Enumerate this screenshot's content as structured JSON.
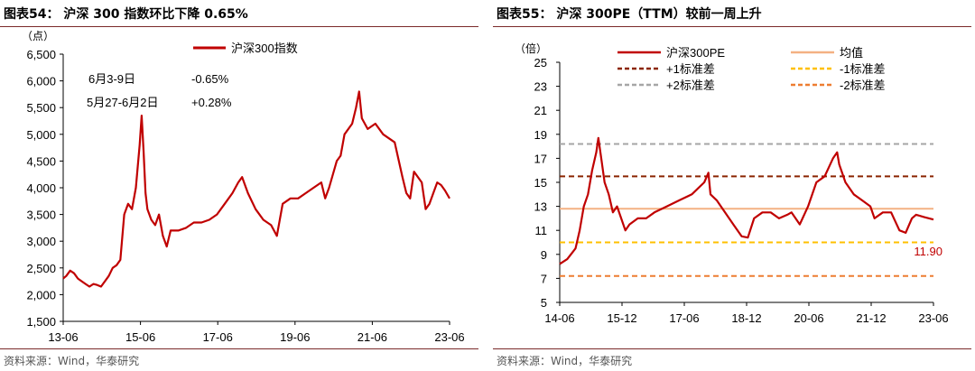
{
  "left": {
    "title": "图表54：  沪深 300 指数环比下降 0.65%",
    "source": "资料来源：Wind，华泰研究",
    "chart_data": {
      "type": "line",
      "ylabel": "（点）",
      "ylim": [
        1500,
        6500
      ],
      "y_ticks": [
        "1,500",
        "2,000",
        "2,500",
        "3,000",
        "3,500",
        "4,000",
        "4,500",
        "5,000",
        "5,500",
        "6,000",
        "6,500"
      ],
      "y_tick_values": [
        1500,
        2000,
        2500,
        3000,
        3500,
        4000,
        4500,
        5000,
        5500,
        6000,
        6500
      ],
      "x_ticks": [
        "13-06",
        "15-06",
        "17-06",
        "19-06",
        "21-06",
        "23-06"
      ],
      "x_range": [
        2013.42,
        2023.42
      ],
      "legend": "top-center",
      "series": [
        {
          "name": "沪深300指数",
          "color": "#c00000",
          "x": [
            2013.42,
            2013.5,
            2013.6,
            2013.7,
            2013.8,
            2013.9,
            2014.0,
            2014.1,
            2014.2,
            2014.3,
            2014.4,
            2014.5,
            2014.6,
            2014.7,
            2014.8,
            2014.9,
            2015.0,
            2015.1,
            2015.2,
            2015.3,
            2015.4,
            2015.45,
            2015.5,
            2015.55,
            2015.6,
            2015.7,
            2015.8,
            2015.9,
            2016.0,
            2016.1,
            2016.2,
            2016.4,
            2016.6,
            2016.8,
            2017.0,
            2017.2,
            2017.4,
            2017.6,
            2017.8,
            2017.95,
            2018.05,
            2018.2,
            2018.4,
            2018.6,
            2018.8,
            2018.95,
            2019.1,
            2019.3,
            2019.5,
            2019.7,
            2019.9,
            2020.1,
            2020.2,
            2020.3,
            2020.5,
            2020.6,
            2020.7,
            2020.9,
            2021.0,
            2021.08,
            2021.15,
            2021.3,
            2021.5,
            2021.7,
            2021.9,
            2022.0,
            2022.2,
            2022.3,
            2022.4,
            2022.5,
            2022.7,
            2022.8,
            2022.9,
            2023.0,
            2023.1,
            2023.2,
            2023.3,
            2023.42
          ],
          "y": [
            2300,
            2350,
            2450,
            2400,
            2300,
            2250,
            2200,
            2150,
            2200,
            2180,
            2150,
            2250,
            2350,
            2500,
            2550,
            2650,
            3500,
            3700,
            3600,
            4000,
            4800,
            5350,
            4700,
            3900,
            3600,
            3400,
            3300,
            3500,
            3100,
            2900,
            3200,
            3200,
            3250,
            3350,
            3350,
            3400,
            3500,
            3700,
            3900,
            4100,
            4200,
            3900,
            3600,
            3400,
            3300,
            3100,
            3700,
            3800,
            3800,
            3900,
            4000,
            4100,
            3800,
            4000,
            4500,
            4600,
            5000,
            5200,
            5500,
            5800,
            5300,
            5100,
            5200,
            5000,
            4900,
            4850,
            4200,
            3900,
            3800,
            4300,
            4100,
            3600,
            3700,
            3900,
            4100,
            4050,
            3950,
            3800
          ]
        }
      ],
      "annotations": [
        {
          "label": "6月3-9日",
          "value": "-0.65%"
        },
        {
          "label": "5月27-6月2日",
          "value": "+0.28%"
        }
      ]
    }
  },
  "right": {
    "title": "图表55：  沪深 300PE（TTM）较前一周上升",
    "source": "资料来源：Wind，华泰研究",
    "chart_data": {
      "type": "line",
      "ylabel": "（倍）",
      "ylim": [
        5,
        25
      ],
      "y_ticks": [
        "5",
        "7",
        "9",
        "11",
        "13",
        "15",
        "17",
        "19",
        "21",
        "23",
        "25"
      ],
      "y_tick_values": [
        5,
        7,
        9,
        11,
        13,
        15,
        17,
        19,
        21,
        23,
        25
      ],
      "x_ticks": [
        "14-06",
        "15-12",
        "17-06",
        "18-12",
        "20-06",
        "21-12",
        "23-06"
      ],
      "x_range": [
        2014.42,
        2023.42
      ],
      "legend": "top",
      "series": [
        {
          "name": "沪深300PE",
          "color": "#c00000",
          "style": "solid",
          "x": [
            2014.42,
            2014.6,
            2014.8,
            2014.9,
            2015.0,
            2015.1,
            2015.2,
            2015.3,
            2015.35,
            2015.42,
            2015.5,
            2015.6,
            2015.7,
            2015.8,
            2015.9,
            2016.0,
            2016.1,
            2016.3,
            2016.5,
            2016.7,
            2017.0,
            2017.3,
            2017.6,
            2017.9,
            2018.0,
            2018.05,
            2018.2,
            2018.4,
            2018.6,
            2018.8,
            2018.95,
            2019.1,
            2019.3,
            2019.5,
            2019.7,
            2019.9,
            2020.0,
            2020.2,
            2020.4,
            2020.6,
            2020.8,
            2021.0,
            2021.1,
            2021.15,
            2021.3,
            2021.5,
            2021.7,
            2021.9,
            2022.0,
            2022.2,
            2022.4,
            2022.6,
            2022.75,
            2022.9,
            2023.0,
            2023.2,
            2023.42
          ],
          "y": [
            8.2,
            8.6,
            9.5,
            11,
            13,
            14,
            16,
            17.5,
            18.7,
            17,
            15,
            14,
            12.5,
            13,
            12,
            11,
            11.5,
            12,
            12,
            12.5,
            13,
            13.5,
            14,
            15,
            15.8,
            14,
            13.5,
            12.5,
            11.5,
            10.5,
            10.4,
            12,
            12.5,
            12.5,
            12,
            12.3,
            12.5,
            11.5,
            13,
            15,
            15.5,
            17,
            17.5,
            16.5,
            15,
            14,
            13.5,
            13,
            12,
            12.5,
            12.5,
            11,
            10.8,
            12,
            12.3,
            12.1,
            11.9
          ]
        },
        {
          "name": "均值",
          "color": "#f4b183",
          "style": "solid",
          "constant": 12.8
        },
        {
          "name": "+1标准差",
          "color": "#8b2500",
          "style": "dashed",
          "constant": 15.5
        },
        {
          "name": "-1标准差",
          "color": "#ffc000",
          "style": "dashed",
          "constant": 10.0
        },
        {
          "name": "+2标准差",
          "color": "#a6a6a6",
          "style": "dashed",
          "constant": 18.2
        },
        {
          "name": "-2标准差",
          "color": "#ed7d31",
          "style": "dashed",
          "constant": 7.2
        }
      ],
      "annotations": [
        {
          "label": "11.90",
          "color": "#c00000"
        }
      ]
    }
  }
}
